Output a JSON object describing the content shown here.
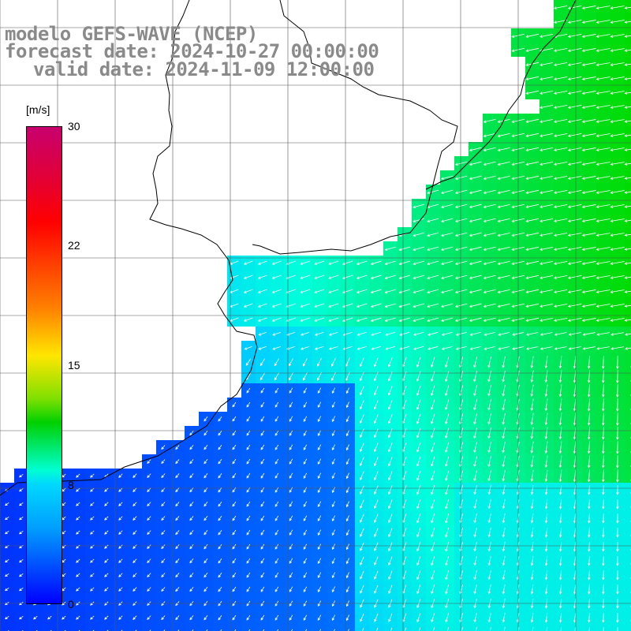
{
  "header": {
    "model": "modelo GEFS-WAVE (NCEP)",
    "forecast": "forecast date: 2024-10-27 00:00:00",
    "valid": "valid date: 2024-11-09 12:00:00"
  },
  "colorbar": {
    "unit": "[m/s]",
    "ticks": [
      "30",
      "22",
      "15",
      "8",
      "0"
    ],
    "range": [
      0,
      30
    ],
    "colors": [
      "#0000ff",
      "#00a0ff",
      "#00ffff",
      "#00e000",
      "#ffff00",
      "#ff8000",
      "#ff0000",
      "#c8006e"
    ]
  },
  "map": {
    "variable": "wind speed",
    "grid_lines": true,
    "land_color": "#ffffff",
    "coast_color": "#000000",
    "arrow_color": "#ffffff"
  }
}
